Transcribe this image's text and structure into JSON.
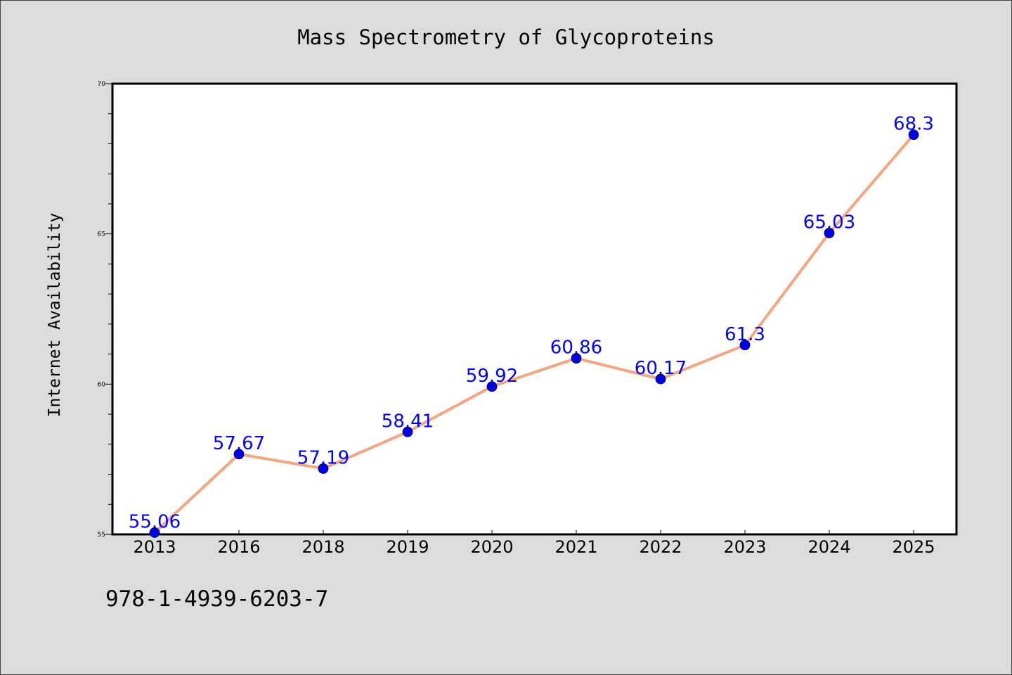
{
  "chart_data": {
    "type": "line",
    "title": "Mass Spectrometry of Glycoproteins",
    "ylabel": "Internet Availability",
    "xlabel": "",
    "categories": [
      "2013",
      "2016",
      "2018",
      "2019",
      "2020",
      "2021",
      "2022",
      "2023",
      "2024",
      "2025"
    ],
    "series": [
      {
        "values": [
          55.06,
          57.67,
          57.19,
          58.41,
          59.92,
          60.86,
          60.17,
          61.3,
          65.03,
          68.3
        ],
        "labels": [
          "55.06",
          "57.67",
          "57.19",
          "58.41",
          "59.92",
          "60.86",
          "60.17",
          "61.3",
          "65.03",
          "68.3"
        ]
      }
    ],
    "ylim": [
      55,
      70
    ],
    "y_ticks": [
      "55",
      "60",
      "65",
      "70"
    ],
    "grid": false,
    "colors": {
      "line": "#f4a582",
      "marker": "#0000ee",
      "label": "#0000ff",
      "background": "#dcdcdc",
      "plot_background": "#ffffff"
    }
  },
  "footer": {
    "isbn": "978-1-4939-6203-7"
  }
}
